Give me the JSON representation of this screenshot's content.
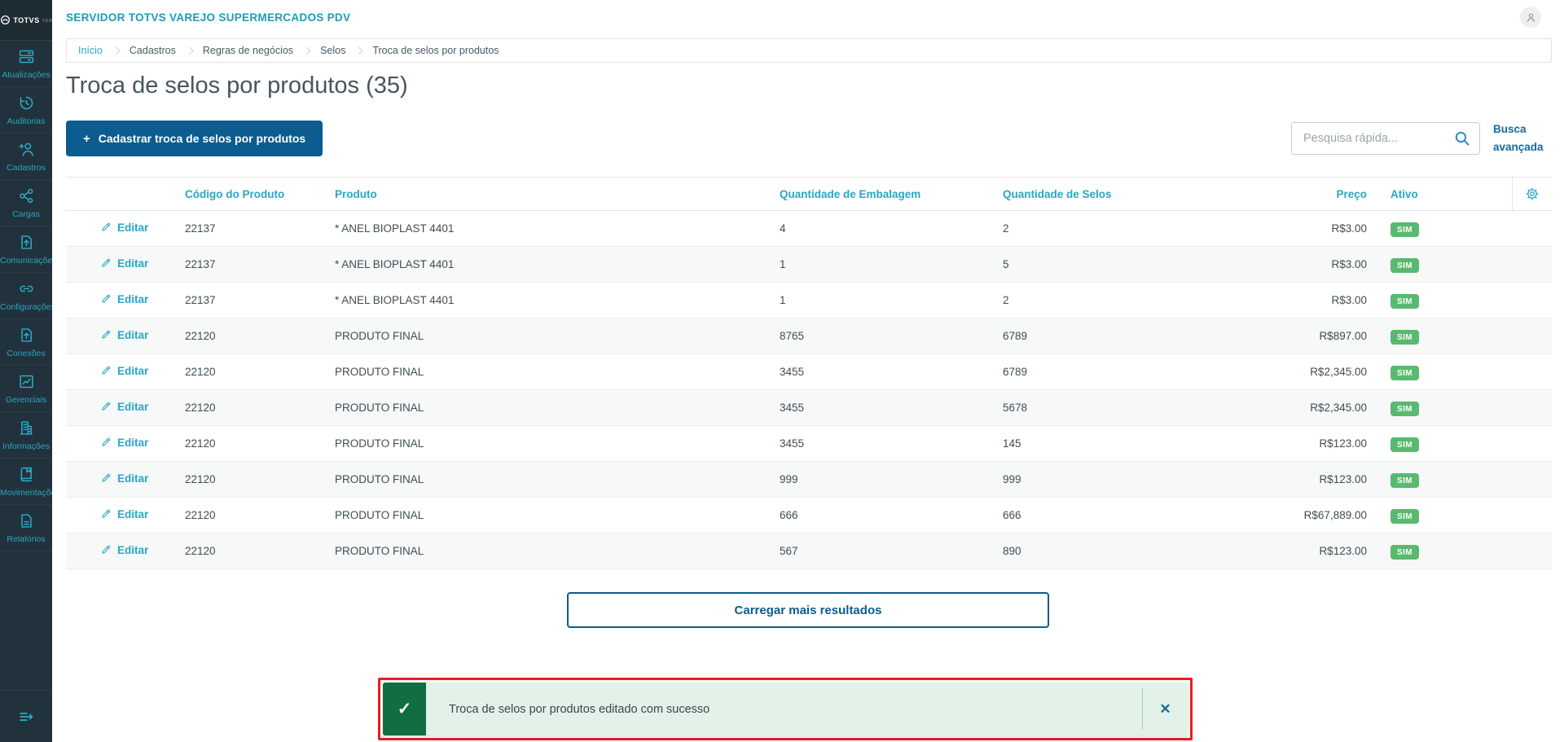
{
  "colors": {
    "sidebar_bg": "#22323c",
    "accent_teal": "#29a8c6",
    "primary_blue": "#0c5c8f",
    "link_blue": "#15699e",
    "badge_green": "#59b96e",
    "toast_bg": "#e3f2e8",
    "toast_green": "#116e41",
    "annotation_red": "#ee1b1b",
    "text_dark": "#47555e"
  },
  "sidebar": {
    "logo_text": "TOTVS",
    "items": [
      {
        "label": "Atualizações",
        "icon": "server-icon"
      },
      {
        "label": "Auditorias",
        "icon": "history-icon"
      },
      {
        "label": "Cadastros",
        "icon": "user-plus-icon"
      },
      {
        "label": "Cargas",
        "icon": "share-icon"
      },
      {
        "label": "Comunicações",
        "icon": "file-upload-icon"
      },
      {
        "label": "Configurações",
        "icon": "link-icon"
      },
      {
        "label": "Conexões",
        "icon": "file-upload-icon"
      },
      {
        "label": "Gerenciais",
        "icon": "chart-icon"
      },
      {
        "label": "Informações",
        "icon": "building-icon"
      },
      {
        "label": "Movimentações",
        "icon": "book-icon"
      },
      {
        "label": "Relatórios",
        "icon": "report-icon"
      }
    ]
  },
  "header": {
    "app_title": "SERVIDOR TOTVS VAREJO SUPERMERCADOS PDV"
  },
  "breadcrumb": {
    "items": [
      "Início",
      "Cadastros",
      "Regras de negócios",
      "Selos",
      "Troca de selos por produtos"
    ]
  },
  "page": {
    "title": "Troca de selos por produtos (35)"
  },
  "toolbar": {
    "add_button_plus": "+",
    "add_button_label": "Cadastrar troca de selos por produtos",
    "search_placeholder": "Pesquisa rápida...",
    "advanced_search_label": "Busca avançada"
  },
  "table": {
    "headers": {
      "action": "",
      "code": "Código do Produto",
      "product": "Produto",
      "package": "Quantidade de Embalagem",
      "stamps": "Quantidade de Selos",
      "price": "Preço",
      "active": "Ativo"
    },
    "rows": [
      {
        "action": "Editar",
        "code": "22137",
        "product": "* ANEL BIOPLAST 4401",
        "package_qty": "4",
        "stamp_qty": "2",
        "price": "R$3.00",
        "active": "SIM"
      },
      {
        "action": "Editar",
        "code": "22137",
        "product": "* ANEL BIOPLAST 4401",
        "package_qty": "1",
        "stamp_qty": "5",
        "price": "R$3.00",
        "active": "SIM"
      },
      {
        "action": "Editar",
        "code": "22137",
        "product": "* ANEL BIOPLAST 4401",
        "package_qty": "1",
        "stamp_qty": "2",
        "price": "R$3.00",
        "active": "SIM"
      },
      {
        "action": "Editar",
        "code": "22120",
        "product": "PRODUTO FINAL",
        "package_qty": "8765",
        "stamp_qty": "6789",
        "price": "R$897.00",
        "active": "SIM"
      },
      {
        "action": "Editar",
        "code": "22120",
        "product": "PRODUTO FINAL",
        "package_qty": "3455",
        "stamp_qty": "6789",
        "price": "R$2,345.00",
        "active": "SIM"
      },
      {
        "action": "Editar",
        "code": "22120",
        "product": "PRODUTO FINAL",
        "package_qty": "3455",
        "stamp_qty": "5678",
        "price": "R$2,345.00",
        "active": "SIM"
      },
      {
        "action": "Editar",
        "code": "22120",
        "product": "PRODUTO FINAL",
        "package_qty": "3455",
        "stamp_qty": "145",
        "price": "R$123.00",
        "active": "SIM"
      },
      {
        "action": "Editar",
        "code": "22120",
        "product": "PRODUTO FINAL",
        "package_qty": "999",
        "stamp_qty": "999",
        "price": "R$123.00",
        "active": "SIM"
      },
      {
        "action": "Editar",
        "code": "22120",
        "product": "PRODUTO FINAL",
        "package_qty": "666",
        "stamp_qty": "666",
        "price": "R$67,889.00",
        "active": "SIM"
      },
      {
        "action": "Editar",
        "code": "22120",
        "product": "PRODUTO FINAL",
        "package_qty": "567",
        "stamp_qty": "890",
        "price": "R$123.00",
        "active": "SIM"
      }
    ]
  },
  "load_more_label": "Carregar mais resultados",
  "toast": {
    "message": "Troca de selos por produtos editado com sucesso",
    "check_glyph": "✓",
    "close_glyph": "✕"
  }
}
